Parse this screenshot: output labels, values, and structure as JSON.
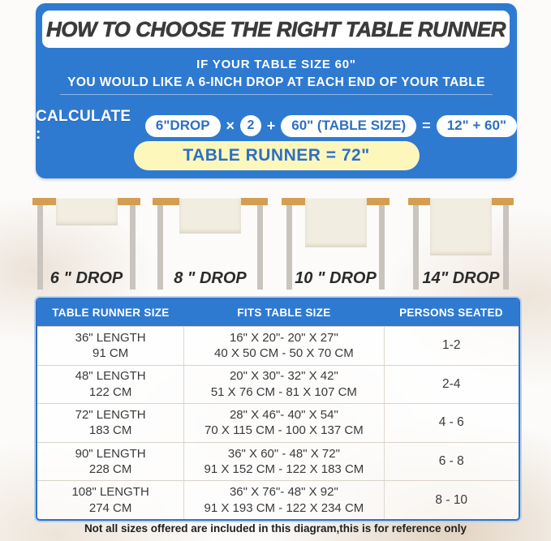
{
  "header": {
    "title": "HOW TO CHOOSE THE RIGHT TABLE RUNNER"
  },
  "intro": {
    "line1": "IF YOUR TABLE SIZE 60\"",
    "line2": "YOU WOULD LIKE A 6-INCH DROP AT EACH END OF YOUR TABLE"
  },
  "formula": {
    "label": "CALCULATE :",
    "drop_pill": "6\"DROP",
    "times": "×",
    "multiplier": "2",
    "plus": "+",
    "table_size_pill": "60\" (TABLE SIZE)",
    "equals": "=",
    "result_pill": "12\" + 60\"",
    "runner_result": "TABLE RUNNER = 72\""
  },
  "drops": {
    "items": [
      {
        "label": "6 \" DROP",
        "drop_inches": 6
      },
      {
        "label": "8 \" DROP",
        "drop_inches": 8
      },
      {
        "label": "10 \" DROP",
        "drop_inches": 10
      },
      {
        "label": "14\" DROP",
        "drop_inches": 14
      }
    ]
  },
  "size_table": {
    "columns": [
      "TABLE RUNNER SIZE",
      "FITS TABLE SIZE",
      "PERSONS SEATED"
    ],
    "rows": [
      {
        "size_in": "36\" LENGTH",
        "size_cm": "91 CM",
        "fits_in": "16\" X 20\"- 20\" X 27\"",
        "fits_cm": "40 X 50 CM - 50 X 70 CM",
        "persons": "1-2"
      },
      {
        "size_in": "48\" LENGTH",
        "size_cm": "122 CM",
        "fits_in": "20\" X 30\"- 32\" X 42\"",
        "fits_cm": "51 X 76 CM - 81 X 107 CM",
        "persons": "2-4"
      },
      {
        "size_in": "72\" LENGTH",
        "size_cm": "183 CM",
        "fits_in": "28\" X 46\"- 40\" X 54\"",
        "fits_cm": "70 X 115 CM - 100 X 137 CM",
        "persons": "4 - 6"
      },
      {
        "size_in": "90\" LENGTH",
        "size_cm": "228 CM",
        "fits_in": "36\" X 60\" - 48\" X 72\"",
        "fits_cm": "91 X 152 CM - 122 X 183 CM",
        "persons": "6 - 8"
      },
      {
        "size_in": "108\" LENGTH",
        "size_cm": "274 CM",
        "fits_in": "36\" X 76\"- 48\" X 92\"",
        "fits_cm": "91 X 193 CM - 122 X 234 CM",
        "persons": "8 - 10"
      }
    ]
  },
  "footer": {
    "note": "Not all sizes offered are included in this diagram,this is for reference only"
  },
  "colors": {
    "primary_blue": "#2f7ad1",
    "pill_text_blue": "#2d6fc6",
    "accent_yellow": "#fdf7bc",
    "tabletop_tan": "#d49e52",
    "runner_cream": "#f2ede1",
    "title_dark": "#3b3b3b"
  }
}
